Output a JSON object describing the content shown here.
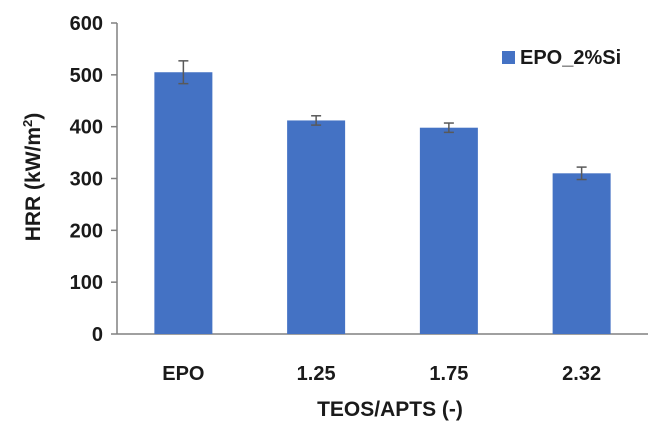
{
  "chart_data": {
    "type": "bar",
    "categories": [
      "EPO",
      "1.25",
      "1.75",
      "2.32"
    ],
    "series": [
      {
        "name": "EPO_2%Si",
        "values": [
          505,
          412,
          398,
          310
        ],
        "error": [
          22,
          9,
          9,
          12
        ],
        "color": "#4472C4"
      }
    ],
    "xlabel": "TEOS/APTS (-)",
    "ylabel_main": "HRR (kW/m",
    "ylabel_sup": "2",
    "ylabel_end": ")",
    "ylim": [
      0,
      600
    ],
    "yticks": [
      "0",
      "100",
      "200",
      "300",
      "400",
      "500",
      "600"
    ],
    "grid": false,
    "legend_position": "top-right"
  }
}
